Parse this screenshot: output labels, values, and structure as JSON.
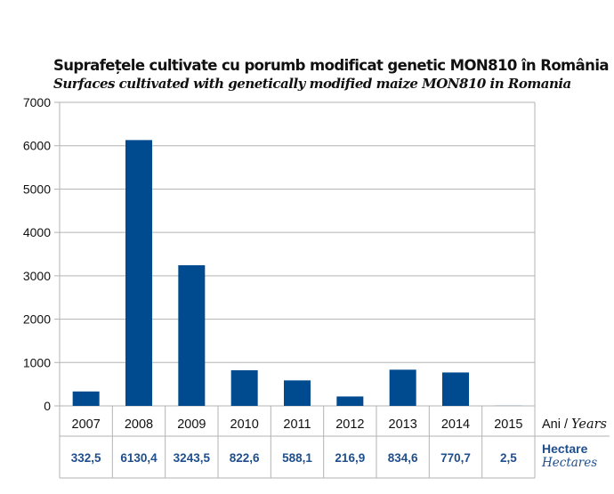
{
  "chart_data": {
    "type": "bar",
    "title": "Suprafețele cultivate cu porumb modificat genetic MON810 în România",
    "subtitle": "Surfaces cultivated with genetically modified maize MON810 in Romania",
    "categories": [
      "2007",
      "2008",
      "2009",
      "2010",
      "2011",
      "2012",
      "2013",
      "2014",
      "2015"
    ],
    "values": [
      332.5,
      6130.4,
      3243.5,
      822.6,
      588.1,
      216.9,
      834.6,
      770.7,
      2.5
    ],
    "value_labels": [
      "332,5",
      "6130,4",
      "3243,5",
      "822,6",
      "588,1",
      "216,9",
      "834,6",
      "770,7",
      "2,5"
    ],
    "xlabel": "Ani",
    "xlabel_en": "Years",
    "row_label": "Hectare",
    "row_label_en": "Hectares",
    "ylim": [
      0,
      7000
    ],
    "yticks": [
      0,
      1000,
      2000,
      3000,
      4000,
      5000,
      6000,
      7000
    ],
    "grid": true,
    "bar_color": "#004a8f",
    "label_color": "#1f4e8c"
  }
}
